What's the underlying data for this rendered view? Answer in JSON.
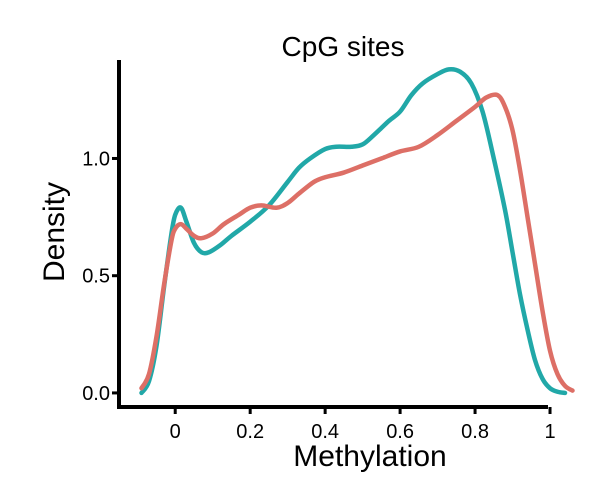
{
  "chart_data": {
    "type": "line",
    "title": "CpG sites",
    "xlabel": "Methylation",
    "ylabel": "Density",
    "xlim": [
      -0.15,
      1.08
    ],
    "ylim": [
      -0.06,
      1.42
    ],
    "x_ticks": [
      0,
      0.2,
      0.4,
      0.6,
      0.8,
      1
    ],
    "x_tick_labels": [
      "0",
      "0.2",
      "0.4",
      "0.6",
      "0.8",
      "1"
    ],
    "y_ticks": [
      0.0,
      0.5,
      1.0
    ],
    "y_tick_labels": [
      "0.0",
      "0.5",
      "1.0"
    ],
    "grid": false,
    "legend": "none",
    "series": [
      {
        "color": "#21A8A8",
        "x": [
          -0.09,
          -0.07,
          -0.05,
          -0.03,
          -0.01,
          0.0,
          0.015,
          0.03,
          0.05,
          0.07,
          0.09,
          0.12,
          0.15,
          0.2,
          0.25,
          0.3,
          0.33,
          0.36,
          0.4,
          0.43,
          0.47,
          0.5,
          0.53,
          0.57,
          0.6,
          0.63,
          0.66,
          0.7,
          0.73,
          0.76,
          0.79,
          0.82,
          0.85,
          0.88,
          0.9,
          0.92,
          0.94,
          0.96,
          0.98,
          1.0,
          1.02,
          1.04
        ],
        "y": [
          0.0,
          0.05,
          0.2,
          0.45,
          0.68,
          0.76,
          0.79,
          0.73,
          0.64,
          0.6,
          0.6,
          0.63,
          0.67,
          0.73,
          0.8,
          0.9,
          0.96,
          1.0,
          1.04,
          1.05,
          1.05,
          1.06,
          1.1,
          1.16,
          1.2,
          1.27,
          1.32,
          1.36,
          1.38,
          1.37,
          1.32,
          1.2,
          1.0,
          0.78,
          0.6,
          0.42,
          0.27,
          0.14,
          0.06,
          0.02,
          0.005,
          0.0
        ]
      },
      {
        "color": "#DD6F66",
        "x": [
          -0.09,
          -0.07,
          -0.05,
          -0.03,
          -0.01,
          0.0,
          0.015,
          0.03,
          0.05,
          0.07,
          0.1,
          0.13,
          0.17,
          0.2,
          0.23,
          0.27,
          0.3,
          0.33,
          0.37,
          0.4,
          0.45,
          0.5,
          0.55,
          0.6,
          0.65,
          0.7,
          0.75,
          0.8,
          0.83,
          0.86,
          0.88,
          0.9,
          0.92,
          0.94,
          0.96,
          0.98,
          1.0,
          1.02,
          1.04,
          1.06
        ],
        "y": [
          0.02,
          0.08,
          0.24,
          0.46,
          0.65,
          0.7,
          0.72,
          0.7,
          0.67,
          0.66,
          0.68,
          0.72,
          0.76,
          0.79,
          0.8,
          0.79,
          0.81,
          0.85,
          0.9,
          0.92,
          0.94,
          0.97,
          1.0,
          1.03,
          1.05,
          1.1,
          1.16,
          1.22,
          1.26,
          1.27,
          1.22,
          1.12,
          0.95,
          0.75,
          0.55,
          0.35,
          0.18,
          0.08,
          0.03,
          0.01
        ]
      }
    ]
  }
}
